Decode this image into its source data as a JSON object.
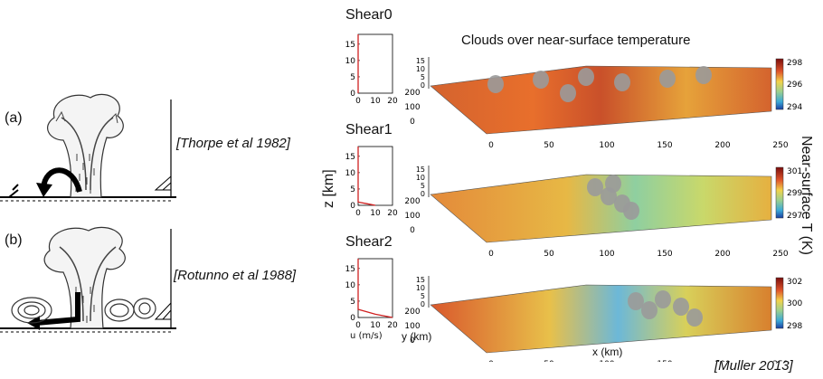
{
  "left": {
    "panel_a_label": "(a)",
    "panel_b_label": "(b)",
    "cite_a": "[Thorpe et al 1982]",
    "cite_b": "[Rotunno et al 1988]"
  },
  "profiles": {
    "titles": [
      "Shear0",
      "Shear1",
      "Shear2"
    ],
    "ylabel": "z [km]",
    "xlabel": "u (m/s)",
    "yticks": [
      "0",
      "5",
      "10",
      "15"
    ],
    "xticks": [
      "0",
      "10",
      "20"
    ]
  },
  "surface": {
    "title": "Clouds over near-surface temperature",
    "zticks": [
      "0",
      "5",
      "10",
      "15"
    ],
    "y_ticks": [
      "0",
      "100",
      "200"
    ],
    "x_ticks": [
      "0",
      "50",
      "100",
      "150",
      "200",
      "250"
    ],
    "y_axis_label": "y (km)",
    "x_axis_label": "x (km)",
    "colorbar_label": "Near-surface T (K)",
    "colorbars": [
      {
        "top": "298",
        "mid": "296",
        "bot": "294"
      },
      {
        "top": "301",
        "mid": "299",
        "bot": "297"
      },
      {
        "top": "302",
        "mid": "300",
        "bot": "298"
      }
    ]
  },
  "credit": "[Muller 2013]",
  "chart_data": [
    {
      "type": "line",
      "title": "Shear0",
      "xlabel": "u (m/s)",
      "ylabel": "z [km]",
      "xlim": [
        0,
        20
      ],
      "ylim": [
        0,
        18
      ],
      "series": [
        {
          "x": [
            0,
            0,
            0
          ],
          "y": [
            0,
            5,
            18
          ]
        }
      ]
    },
    {
      "type": "line",
      "title": "Shear1",
      "xlabel": "u (m/s)",
      "ylabel": "z [km]",
      "xlim": [
        0,
        20
      ],
      "ylim": [
        0,
        18
      ],
      "series": [
        {
          "x": [
            10,
            5,
            0,
            0
          ],
          "y": [
            0,
            0.5,
            1,
            18
          ]
        }
      ]
    },
    {
      "type": "line",
      "title": "Shear2",
      "xlabel": "u (m/s)",
      "ylabel": "z [km]",
      "xlim": [
        0,
        20
      ],
      "ylim": [
        0,
        18
      ],
      "series": [
        {
          "x": [
            20,
            10,
            0,
            0
          ],
          "y": [
            0,
            1,
            2.5,
            18
          ]
        }
      ]
    }
  ]
}
